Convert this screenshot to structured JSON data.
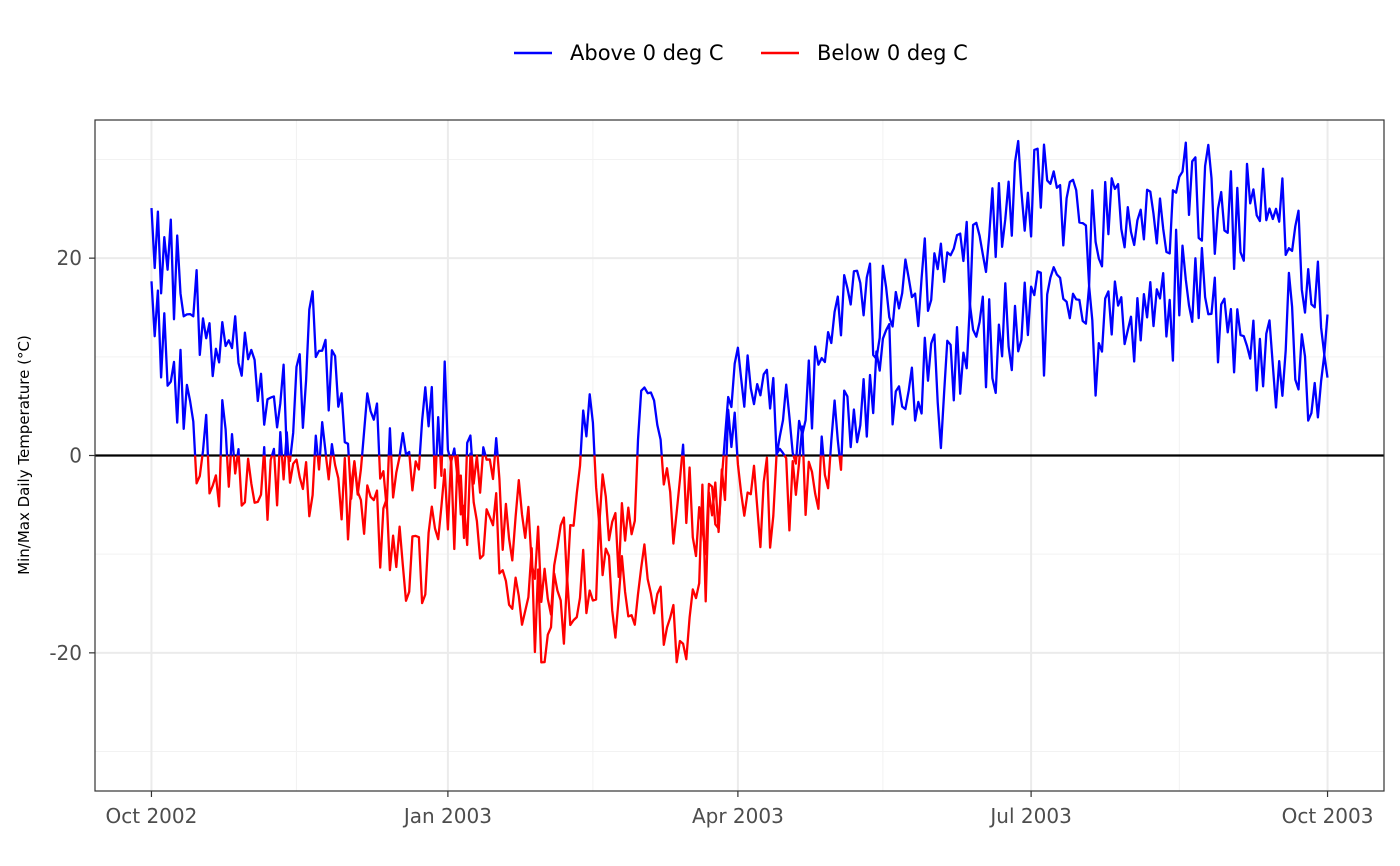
{
  "chart_data": {
    "type": "line",
    "ylabel": "Min/Max Daily Temperature (°C)",
    "xlim": [
      "2002-10-01",
      "2003-10-01"
    ],
    "ylim": [
      -34,
      34
    ],
    "x_ticks": [
      {
        "date": "2002-10-01",
        "label": "Oct 2002"
      },
      {
        "date": "2003-01-01",
        "label": "Jan 2003"
      },
      {
        "date": "2003-04-01",
        "label": "Apr 2003"
      },
      {
        "date": "2003-07-01",
        "label": "Jul 2003"
      },
      {
        "date": "2003-10-01",
        "label": "Oct 2003"
      }
    ],
    "x_minor_ticks": [
      "2002-11-15",
      "2003-02-15",
      "2003-05-16",
      "2003-08-16"
    ],
    "y_ticks": [
      {
        "value": 20,
        "label": "20"
      },
      {
        "value": 0,
        "label": "0"
      },
      {
        "value": -20,
        "label": "-20"
      }
    ],
    "y_minor_ticks": [
      30,
      10,
      -10,
      -30
    ],
    "reference_line": 0,
    "grid": true,
    "legend": {
      "position": "top",
      "entries": [
        {
          "label": "Above 0 deg C",
          "color": "#0000ff"
        },
        {
          "label": "Below 0 deg C",
          "color": "#ff0000"
        }
      ]
    },
    "colors": {
      "above": "#0000ff",
      "below": "#ff0000",
      "reference": "#000000"
    },
    "series": [
      {
        "name": "Above 0 deg C",
        "role": "max",
        "start": "2002-10-01",
        "knots": [
          [
            "2002-10-01",
            27
          ],
          [
            "2002-10-05",
            18
          ],
          [
            "2002-10-09",
            18
          ],
          [
            "2002-10-12",
            15
          ],
          [
            "2002-10-16",
            13
          ],
          [
            "2002-10-20",
            9
          ],
          [
            "2002-10-24",
            12
          ],
          [
            "2002-10-28",
            9
          ],
          [
            "2002-11-01",
            7
          ],
          [
            "2002-11-06",
            6
          ],
          [
            "2002-11-12",
            4
          ],
          [
            "2002-11-16",
            5
          ],
          [
            "2002-11-20",
            13
          ],
          [
            "2002-11-23",
            14
          ],
          [
            "2002-11-27",
            6
          ],
          [
            "2002-12-01",
            -2
          ],
          [
            "2002-12-05",
            2
          ],
          [
            "2002-12-08",
            8
          ],
          [
            "2002-12-12",
            -3
          ],
          [
            "2002-12-16",
            1
          ],
          [
            "2002-12-20",
            -2
          ],
          [
            "2002-12-25",
            3
          ],
          [
            "2002-12-29",
            1
          ],
          [
            "2003-01-01",
            5
          ],
          [
            "2003-01-05",
            -3
          ],
          [
            "2003-01-10",
            -2
          ],
          [
            "2003-01-14",
            3
          ],
          [
            "2003-01-18",
            -5
          ],
          [
            "2003-01-24",
            -9
          ],
          [
            "2003-01-30",
            -12
          ],
          [
            "2003-02-04",
            -10
          ],
          [
            "2003-02-08",
            -7
          ],
          [
            "2003-02-11",
            1
          ],
          [
            "2003-02-14",
            3
          ],
          [
            "2003-02-17",
            -6
          ],
          [
            "2003-02-22",
            -8
          ],
          [
            "2003-02-27",
            -6
          ],
          [
            "2003-03-02",
            2
          ],
          [
            "2003-03-05",
            4
          ],
          [
            "2003-03-08",
            -4
          ],
          [
            "2003-03-12",
            -6
          ],
          [
            "2003-03-16",
            -1
          ],
          [
            "2003-03-21",
            -10
          ],
          [
            "2003-03-25",
            -4
          ],
          [
            "2003-03-28",
            2
          ],
          [
            "2003-03-31",
            8
          ],
          [
            "2003-04-03",
            5
          ],
          [
            "2003-04-06",
            9
          ],
          [
            "2003-04-10",
            6
          ],
          [
            "2003-04-14",
            3
          ],
          [
            "2003-04-18",
            1
          ],
          [
            "2003-04-22",
            5
          ],
          [
            "2003-04-26",
            9
          ],
          [
            "2003-04-30",
            12
          ],
          [
            "2003-05-04",
            15
          ],
          [
            "2003-05-08",
            16
          ],
          [
            "2003-05-12",
            14
          ],
          [
            "2003-05-16",
            15
          ],
          [
            "2003-05-20",
            16
          ],
          [
            "2003-05-25",
            17
          ],
          [
            "2003-05-30",
            19
          ],
          [
            "2003-06-03",
            18
          ],
          [
            "2003-06-08",
            21
          ],
          [
            "2003-06-13",
            20
          ],
          [
            "2003-06-18",
            23
          ],
          [
            "2003-06-23",
            25
          ],
          [
            "2003-06-28",
            28
          ],
          [
            "2003-07-03",
            27
          ],
          [
            "2003-07-08",
            26
          ],
          [
            "2003-07-13",
            24
          ],
          [
            "2003-07-18",
            22
          ],
          [
            "2003-07-23",
            23
          ],
          [
            "2003-07-28",
            25
          ],
          [
            "2003-08-02",
            26
          ],
          [
            "2003-08-07",
            25
          ],
          [
            "2003-08-12",
            24
          ],
          [
            "2003-08-17",
            26
          ],
          [
            "2003-08-22",
            28
          ],
          [
            "2003-08-27",
            24
          ],
          [
            "2003-09-01",
            23
          ],
          [
            "2003-09-06",
            24
          ],
          [
            "2003-09-11",
            25
          ],
          [
            "2003-09-16",
            24
          ],
          [
            "2003-09-21",
            22
          ],
          [
            "2003-09-26",
            17
          ],
          [
            "2003-10-01",
            12
          ]
        ]
      },
      {
        "name": "Below 0 deg C",
        "role": "min",
        "start": "2002-10-01",
        "knots": [
          [
            "2002-10-01",
            18
          ],
          [
            "2002-10-04",
            12
          ],
          [
            "2002-10-08",
            6
          ],
          [
            "2002-10-12",
            3
          ],
          [
            "2002-10-16",
            1
          ],
          [
            "2002-10-20",
            0
          ],
          [
            "2002-10-25",
            1
          ],
          [
            "2002-10-30",
            -1
          ],
          [
            "2002-11-03",
            -2
          ],
          [
            "2002-11-08",
            -3
          ],
          [
            "2002-11-12",
            -2
          ],
          [
            "2002-11-16",
            -1
          ],
          [
            "2002-11-20",
            -2
          ],
          [
            "2002-11-25",
            -3
          ],
          [
            "2002-11-30",
            -5
          ],
          [
            "2002-12-04",
            -4
          ],
          [
            "2002-12-08",
            -3
          ],
          [
            "2002-12-12",
            -8
          ],
          [
            "2002-12-16",
            -9
          ],
          [
            "2002-12-20",
            -12
          ],
          [
            "2002-12-24",
            -8
          ],
          [
            "2002-12-28",
            -6
          ],
          [
            "2003-01-01",
            -3
          ],
          [
            "2003-01-05",
            -4
          ],
          [
            "2003-01-09",
            -5
          ],
          [
            "2003-01-13",
            -8
          ],
          [
            "2003-01-17",
            -9
          ],
          [
            "2003-01-22",
            -12
          ],
          [
            "2003-01-27",
            -14
          ],
          [
            "2003-02-01",
            -16
          ],
          [
            "2003-02-05",
            -17
          ],
          [
            "2003-02-09",
            -14
          ],
          [
            "2003-02-13",
            -12
          ],
          [
            "2003-02-17",
            -10
          ],
          [
            "2003-02-22",
            -13
          ],
          [
            "2003-02-26",
            -16
          ],
          [
            "2003-03-02",
            -12
          ],
          [
            "2003-03-06",
            -15
          ],
          [
            "2003-03-10",
            -18
          ],
          [
            "2003-03-14",
            -16
          ],
          [
            "2003-03-18",
            -12
          ],
          [
            "2003-03-22",
            -8
          ],
          [
            "2003-03-26",
            -3
          ],
          [
            "2003-03-30",
            -2
          ],
          [
            "2003-04-03",
            -3
          ],
          [
            "2003-04-07",
            -6
          ],
          [
            "2003-04-11",
            -4
          ],
          [
            "2003-04-15",
            -2
          ],
          [
            "2003-04-19",
            -3
          ],
          [
            "2003-04-23",
            -1
          ],
          [
            "2003-04-27",
            1
          ],
          [
            "2003-05-01",
            3
          ],
          [
            "2003-05-05",
            4
          ],
          [
            "2003-05-09",
            5
          ],
          [
            "2003-05-13",
            6
          ],
          [
            "2003-05-17",
            7
          ],
          [
            "2003-05-22",
            6
          ],
          [
            "2003-05-27",
            7
          ],
          [
            "2003-06-01",
            6
          ],
          [
            "2003-06-06",
            8
          ],
          [
            "2003-06-11",
            9
          ],
          [
            "2003-06-16",
            11
          ],
          [
            "2003-06-21",
            10
          ],
          [
            "2003-06-26",
            12
          ],
          [
            "2003-07-01",
            13
          ],
          [
            "2003-07-06",
            15
          ],
          [
            "2003-07-11",
            14
          ],
          [
            "2003-07-16",
            13
          ],
          [
            "2003-07-21",
            12
          ],
          [
            "2003-07-26",
            13
          ],
          [
            "2003-07-31",
            14
          ],
          [
            "2003-08-05",
            16
          ],
          [
            "2003-08-10",
            17
          ],
          [
            "2003-08-15",
            16
          ],
          [
            "2003-08-20",
            17
          ],
          [
            "2003-08-25",
            14
          ],
          [
            "2003-08-30",
            12
          ],
          [
            "2003-09-04",
            13
          ],
          [
            "2003-09-09",
            12
          ],
          [
            "2003-09-14",
            11
          ],
          [
            "2003-09-19",
            12
          ],
          [
            "2003-09-24",
            10
          ],
          [
            "2003-10-01",
            5
          ]
        ]
      }
    ]
  }
}
